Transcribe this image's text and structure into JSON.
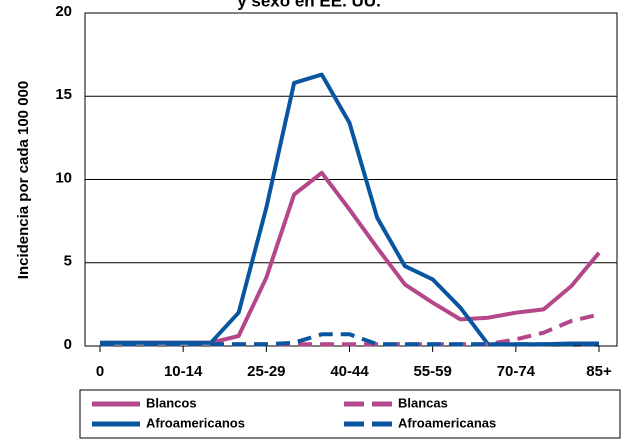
{
  "chart_data": {
    "type": "line",
    "title": "y sexo en EE. UU.",
    "y_label": "Incidencia por cada 100 000",
    "categories": [
      "0",
      null,
      null,
      "10-14",
      null,
      null,
      "25-29",
      null,
      null,
      "40-44",
      null,
      null,
      "55-59",
      null,
      null,
      "70-74",
      null,
      null,
      "85+"
    ],
    "ylim": [
      0,
      20
    ],
    "yticks": [
      0,
      5,
      10,
      15,
      20
    ],
    "grid": true,
    "legend": "bottom",
    "series": [
      {
        "name": "Blancos",
        "color": "#b4468a",
        "dashed": false,
        "values": [
          0.2,
          0.2,
          0.2,
          0.2,
          0.2,
          0.6,
          4.1,
          9.1,
          10.4,
          8.2,
          5.9,
          3.7,
          2.6,
          1.6,
          1.7,
          2.0,
          2.2,
          3.6,
          5.6
        ]
      },
      {
        "name": "Afroamericanos",
        "color": "#0a55a0",
        "dashed": false,
        "values": [
          0.2,
          0.2,
          0.2,
          0.2,
          0.2,
          2.0,
          8.3,
          15.8,
          16.3,
          13.4,
          7.7,
          4.8,
          4.0,
          2.3,
          0.1,
          0.1,
          0.1,
          0.15,
          0.15
        ]
      },
      {
        "name": "Blancas",
        "color": "#b4468a",
        "dashed": true,
        "values": [
          0.1,
          0.1,
          0.1,
          0.1,
          0.1,
          0.1,
          0.1,
          0.1,
          0.1,
          0.1,
          0.1,
          0.1,
          0.1,
          0.1,
          0.1,
          0.4,
          0.8,
          1.5,
          1.9
        ]
      },
      {
        "name": "Afroamericanas",
        "color": "#0a55a0",
        "dashed": true,
        "values": [
          0.1,
          0.1,
          0.1,
          0.1,
          0.1,
          0.1,
          0.1,
          0.2,
          0.7,
          0.7,
          0.1,
          0.1,
          0.1,
          0.1,
          0.1,
          0.1,
          0.1,
          0.1,
          0.1
        ]
      }
    ]
  }
}
